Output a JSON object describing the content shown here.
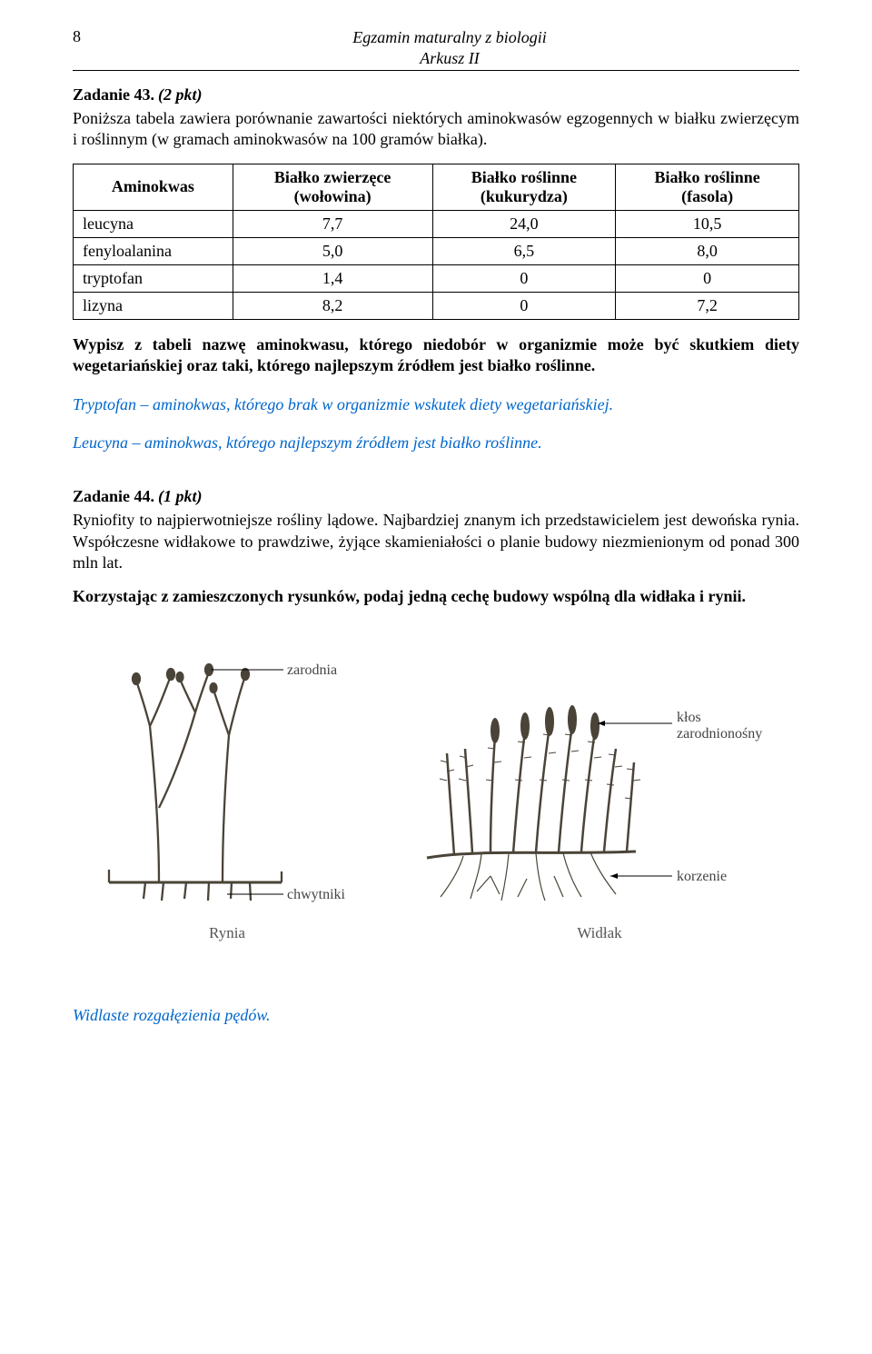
{
  "header": {
    "page_number": "8",
    "title_line1": "Egzamin maturalny z biologii",
    "title_line2": "Arkusz II"
  },
  "task43": {
    "title": "Zadanie 43.",
    "points": "(2 pkt)",
    "intro": "Poniższa tabela zawiera porównanie zawartości niektórych aminokwasów egzogennych w białku zwierzęcym i roślinnym (w gramach aminokwasów na 100 gramów białka).",
    "table": {
      "columns": [
        "Aminokwas",
        "Białko zwierzęce (wołowina)",
        "Białko roślinne (kukurydza)",
        "Białko roślinne (fasola)"
      ],
      "col_line1": [
        "Aminokwas",
        "Białko zwierzęce",
        "Białko roślinne",
        "Białko roślinne"
      ],
      "col_line2": [
        "",
        "(wołowina)",
        "(kukurydza)",
        "(fasola)"
      ],
      "rows": [
        [
          "leucyna",
          "7,7",
          "24,0",
          "10,5"
        ],
        [
          "fenyloalanina",
          "5,0",
          "6,5",
          "8,0"
        ],
        [
          "tryptofan",
          "1,4",
          "0",
          "0"
        ],
        [
          "lizyna",
          "8,2",
          "0",
          "7,2"
        ]
      ]
    },
    "instruction": "Wypisz z tabeli nazwę aminokwasu, którego niedobór w organizmie może być skutkiem diety wegetariańskiej oraz taki, którego najlepszym źródłem jest białko roślinne.",
    "answer1": "Tryptofan – aminokwas, którego brak w organizmie wskutek diety wegetariańskiej.",
    "answer2": "Leucyna – aminokwas, którego najlepszym źródłem jest białko roślinne."
  },
  "task44": {
    "title": "Zadanie 44.",
    "points": "(1 pkt)",
    "intro": "Ryniofity to najpierwotniejsze rośliny lądowe. Najbardziej znanym ich przedstawicielem jest dewońska rynia. Współczesne widłakowe to prawdziwe, żyjące skamieniałości o planie budowy niezmienionym od ponad 300 mln lat.",
    "instruction": "Korzystając z zamieszczonych rysunków, podaj jedną cechę budowy wspólną dla widłaka i rynii.",
    "figure_left": {
      "caption": "Rynia",
      "label_top": "zarodnia",
      "label_bottom": "chwytniki"
    },
    "figure_right": {
      "caption": "Widłak",
      "label_top": "kłos zarodnionośny",
      "label_bottom": "korzenie"
    },
    "answer": "Widlaste rozgałęzienia pędów."
  },
  "style": {
    "answer_color": "#0066cc",
    "text_color": "#000000",
    "background": "#ffffff"
  }
}
